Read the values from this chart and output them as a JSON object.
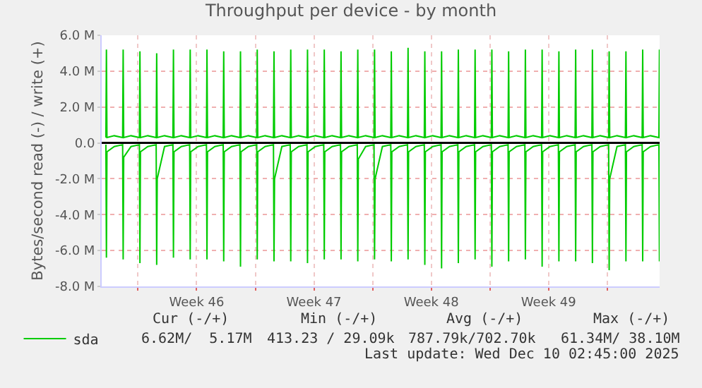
{
  "chart_data": {
    "type": "line",
    "title": "Throughput per device - by month",
    "ylabel": "Bytes/second read (-) / write (+)",
    "xlim": [
      "2025-11-06T20:00",
      "2025-12-10T03:00"
    ],
    "xticks": [
      {
        "value": "2025-11-09",
        "label": null
      },
      {
        "value": "2025-11-12T12:00",
        "label": "Week 46"
      },
      {
        "value": "2025-11-16",
        "label": null
      },
      {
        "value": "2025-11-19T12:00",
        "label": "Week 47"
      },
      {
        "value": "2025-11-23",
        "label": null
      },
      {
        "value": "2025-11-26T12:00",
        "label": "Week 48"
      },
      {
        "value": "2025-11-30",
        "label": null
      },
      {
        "value": "2025-12-03T12:00",
        "label": "Week 49"
      },
      {
        "value": "2025-12-07",
        "label": null
      }
    ],
    "ylim": [
      -8,
      6
    ],
    "yticks": [
      {
        "value": -8,
        "label": "-8.0 M"
      },
      {
        "value": -6,
        "label": "-6.0 M"
      },
      {
        "value": -4,
        "label": "-4.0 M"
      },
      {
        "value": -2,
        "label": "-2.0 M"
      },
      {
        "value": 0,
        "label": "0.0"
      },
      {
        "value": 2,
        "label": "2.0 M"
      },
      {
        "value": 4,
        "label": "4.0 M"
      },
      {
        "value": 6,
        "label": "6.0 M"
      }
    ],
    "grid": true,
    "legend": "bottom left",
    "line_style": "solid",
    "marker": "none",
    "ref_lines": [
      {
        "axis": "y",
        "value": 0,
        "label": null,
        "color": "#000000"
      }
    ],
    "x": [
      "2025-11-07T02:00",
      "2025-11-07T02:45",
      "2025-11-07T03:30",
      "2025-11-07T14:00",
      "2025-11-08T02:00",
      "2025-11-08T02:45",
      "2025-11-08T03:30",
      "2025-11-08T14:00",
      "2025-11-09T02:00",
      "2025-11-09T02:45",
      "2025-11-09T03:30",
      "2025-11-09T14:00",
      "2025-11-10T02:00",
      "2025-11-10T02:45",
      "2025-11-10T03:30",
      "2025-11-10T14:00",
      "2025-11-11T02:00",
      "2025-11-11T02:45",
      "2025-11-11T03:30",
      "2025-11-11T14:00",
      "2025-11-12T02:00",
      "2025-11-12T02:45",
      "2025-11-12T03:30",
      "2025-11-12T14:00",
      "2025-11-13T02:00",
      "2025-11-13T02:45",
      "2025-11-13T03:30",
      "2025-11-13T14:00",
      "2025-11-14T02:00",
      "2025-11-14T02:45",
      "2025-11-14T03:30",
      "2025-11-14T14:00",
      "2025-11-15T02:00",
      "2025-11-15T02:45",
      "2025-11-15T03:30",
      "2025-11-15T14:00",
      "2025-11-16T02:00",
      "2025-11-16T02:45",
      "2025-11-16T03:30",
      "2025-11-16T14:00",
      "2025-11-17T02:00",
      "2025-11-17T02:45",
      "2025-11-17T03:30",
      "2025-11-17T14:00",
      "2025-11-18T02:00",
      "2025-11-18T02:45",
      "2025-11-18T03:30",
      "2025-11-18T14:00",
      "2025-11-19T02:00",
      "2025-11-19T02:45",
      "2025-11-19T03:30",
      "2025-11-19T14:00",
      "2025-11-20T02:00",
      "2025-11-20T02:45",
      "2025-11-20T03:30",
      "2025-11-20T14:00",
      "2025-11-21T02:00",
      "2025-11-21T02:45",
      "2025-11-21T03:30",
      "2025-11-21T14:00",
      "2025-11-22T02:00",
      "2025-11-22T02:45",
      "2025-11-22T03:30",
      "2025-11-22T14:00",
      "2025-11-23T02:00",
      "2025-11-23T02:45",
      "2025-11-23T03:30",
      "2025-11-23T14:00",
      "2025-11-24T02:00",
      "2025-11-24T02:45",
      "2025-11-24T03:30",
      "2025-11-24T14:00",
      "2025-11-25T02:00",
      "2025-11-25T02:45",
      "2025-11-25T03:30",
      "2025-11-25T14:00",
      "2025-11-26T02:00",
      "2025-11-26T02:45",
      "2025-11-26T03:30",
      "2025-11-26T14:00",
      "2025-11-27T02:00",
      "2025-11-27T02:45",
      "2025-11-27T03:30",
      "2025-11-27T14:00",
      "2025-11-28T02:00",
      "2025-11-28T02:45",
      "2025-11-28T03:30",
      "2025-11-28T14:00",
      "2025-11-29T02:00",
      "2025-11-29T02:45",
      "2025-11-29T03:30",
      "2025-11-29T14:00",
      "2025-11-30T02:00",
      "2025-11-30T02:45",
      "2025-11-30T03:30",
      "2025-11-30T14:00",
      "2025-12-01T02:00",
      "2025-12-01T02:45",
      "2025-12-01T03:30",
      "2025-12-01T14:00",
      "2025-12-02T02:00",
      "2025-12-02T02:45",
      "2025-12-02T03:30",
      "2025-12-02T14:00",
      "2025-12-03T02:00",
      "2025-12-03T02:45",
      "2025-12-03T03:30",
      "2025-12-03T14:00",
      "2025-12-04T02:00",
      "2025-12-04T02:45",
      "2025-12-04T03:30",
      "2025-12-04T14:00",
      "2025-12-05T02:00",
      "2025-12-05T02:45",
      "2025-12-05T03:30",
      "2025-12-05T14:00",
      "2025-12-06T02:00",
      "2025-12-06T02:45",
      "2025-12-06T03:30",
      "2025-12-06T14:00",
      "2025-12-07T02:00",
      "2025-12-07T02:45",
      "2025-12-07T03:30",
      "2025-12-07T14:00",
      "2025-12-08T02:00",
      "2025-12-08T02:45",
      "2025-12-08T03:30",
      "2025-12-08T14:00",
      "2025-12-09T02:00",
      "2025-12-09T02:45",
      "2025-12-09T03:30",
      "2025-12-09T14:00",
      "2025-12-10T02:00",
      "2025-12-10T02:45"
    ],
    "series": [
      {
        "name": "sda",
        "color": "#00cc00",
        "values": [
          0.3,
          5.2,
          0.3,
          0.4,
          0.3,
          5.2,
          0.3,
          0.4,
          0.3,
          5.1,
          0.3,
          0.4,
          0.3,
          5.0,
          0.3,
          0.4,
          0.3,
          5.2,
          0.3,
          0.4,
          0.3,
          5.2,
          0.3,
          0.4,
          0.3,
          5.2,
          0.3,
          0.4,
          0.3,
          5.1,
          0.3,
          0.4,
          0.3,
          5.1,
          0.3,
          0.4,
          0.3,
          5.2,
          0.3,
          0.4,
          0.3,
          5.1,
          0.3,
          0.4,
          0.3,
          5.2,
          0.3,
          0.4,
          0.3,
          5.2,
          0.3,
          0.4,
          0.3,
          5.2,
          0.3,
          0.4,
          0.3,
          5.1,
          0.3,
          0.4,
          0.3,
          5.2,
          0.3,
          0.4,
          0.3,
          5.2,
          0.3,
          0.4,
          0.3,
          5.1,
          0.3,
          0.4,
          0.3,
          5.3,
          0.3,
          0.4,
          0.3,
          5.1,
          0.3,
          0.4,
          0.3,
          5.1,
          0.3,
          0.4,
          0.3,
          5.2,
          0.3,
          0.4,
          0.3,
          5.2,
          0.3,
          0.4,
          0.3,
          5.2,
          0.3,
          0.4,
          0.3,
          5.1,
          0.3,
          0.4,
          0.3,
          5.2,
          0.3,
          0.4,
          0.3,
          5.2,
          0.3,
          0.4,
          0.3,
          5.1,
          0.3,
          0.4,
          0.3,
          5.2,
          0.3,
          0.4,
          0.3,
          5.2,
          0.3,
          0.4,
          0.3,
          5.1,
          0.3,
          0.4,
          0.3,
          5.1,
          0.3,
          0.4,
          0.3,
          5.2,
          0.3,
          0.4,
          0.3,
          5.2
        ]
      },
      {
        "color": "#00cc00",
        "values": [
          -0.1,
          -6.4,
          -0.5,
          -0.2,
          -0.1,
          -6.5,
          -0.8,
          -0.2,
          -0.1,
          -6.7,
          -0.5,
          -0.2,
          -0.1,
          -6.8,
          -2.0,
          -0.2,
          -0.1,
          -6.4,
          -0.5,
          -0.2,
          -0.1,
          -6.5,
          -0.5,
          -0.2,
          -0.1,
          -6.5,
          -0.5,
          -0.2,
          -0.1,
          -6.6,
          -0.5,
          -0.2,
          -0.1,
          -6.9,
          -0.5,
          -0.2,
          -0.1,
          -6.5,
          -0.5,
          -0.2,
          -0.1,
          -6.6,
          -2.0,
          -0.2,
          -0.1,
          -6.6,
          -0.5,
          -0.2,
          -0.1,
          -6.7,
          -0.5,
          -0.2,
          -0.1,
          -6.5,
          -0.5,
          -0.2,
          -0.1,
          -6.5,
          -0.5,
          -0.2,
          -0.1,
          -6.6,
          -0.9,
          -0.2,
          -0.1,
          -6.5,
          -2.0,
          -0.2,
          -0.1,
          -6.6,
          -0.5,
          -0.2,
          -0.1,
          -6.5,
          -0.5,
          -0.2,
          -0.1,
          -6.8,
          -0.5,
          -0.2,
          -0.1,
          -7.0,
          -0.5,
          -0.2,
          -0.1,
          -6.7,
          -0.5,
          -0.2,
          -0.1,
          -6.5,
          -0.5,
          -0.2,
          -0.1,
          -6.9,
          -0.5,
          -0.2,
          -0.1,
          -6.6,
          -0.5,
          -0.2,
          -0.1,
          -6.5,
          -0.5,
          -0.2,
          -0.1,
          -6.9,
          -0.5,
          -0.2,
          -0.1,
          -6.6,
          -0.5,
          -0.2,
          -0.1,
          -6.6,
          -0.5,
          -0.2,
          -0.1,
          -6.7,
          -0.5,
          -0.2,
          -0.1,
          -7.1,
          -2.0,
          -0.2,
          -0.1,
          -6.6,
          -0.5,
          -0.2,
          -0.1,
          -6.6,
          -0.5,
          -0.2,
          -0.1,
          -6.6
        ]
      }
    ],
    "annotations": [
      "Cur (-/+)",
      "Min (-/+)",
      "Avg (-/+)",
      "Max (-/+)",
      "6.62M/  5.17M",
      "413.23 / 29.09k",
      "787.79k/702.70k",
      "61.34M/ 38.10M",
      "Last update: Wed Dec 10 02:45:00 2025"
    ]
  }
}
